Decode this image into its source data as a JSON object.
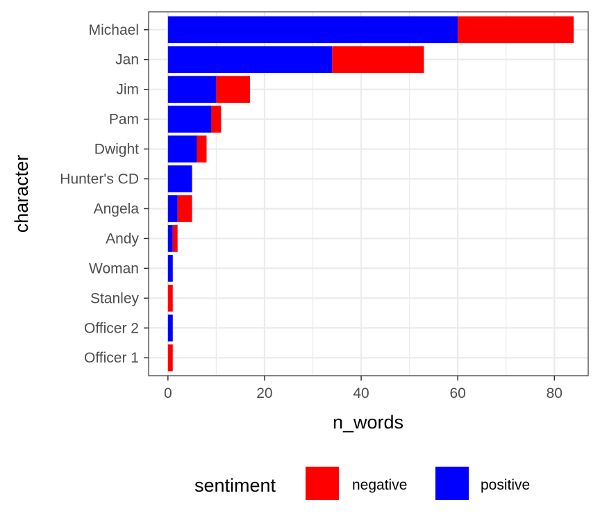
{
  "chart_data": {
    "type": "bar",
    "orientation": "horizontal",
    "stacked": true,
    "xlabel": "n_words",
    "ylabel": "character",
    "xlim": [
      -4,
      87
    ],
    "xticks": [
      0,
      20,
      40,
      60,
      80
    ],
    "categories": [
      "Michael",
      "Jan",
      "Jim",
      "Pam",
      "Dwight",
      "Hunter's CD",
      "Angela",
      "Andy",
      "Woman",
      "Stanley",
      "Officer 2",
      "Officer 1"
    ],
    "series": [
      {
        "name": "positive",
        "color": "#0000FF",
        "values": [
          60,
          34,
          10,
          9,
          6,
          5,
          2,
          1,
          1,
          0,
          1,
          0
        ]
      },
      {
        "name": "negative",
        "color": "#FF0000",
        "values": [
          24,
          19,
          7,
          2,
          2,
          0,
          3,
          1,
          0,
          1,
          0,
          1
        ]
      }
    ],
    "legend": {
      "title": "sentiment",
      "placement": "bottom",
      "entries": [
        {
          "label": "negative",
          "color": "#FF0000"
        },
        {
          "label": "positive",
          "color": "#0000FF"
        }
      ]
    },
    "grid": true
  }
}
